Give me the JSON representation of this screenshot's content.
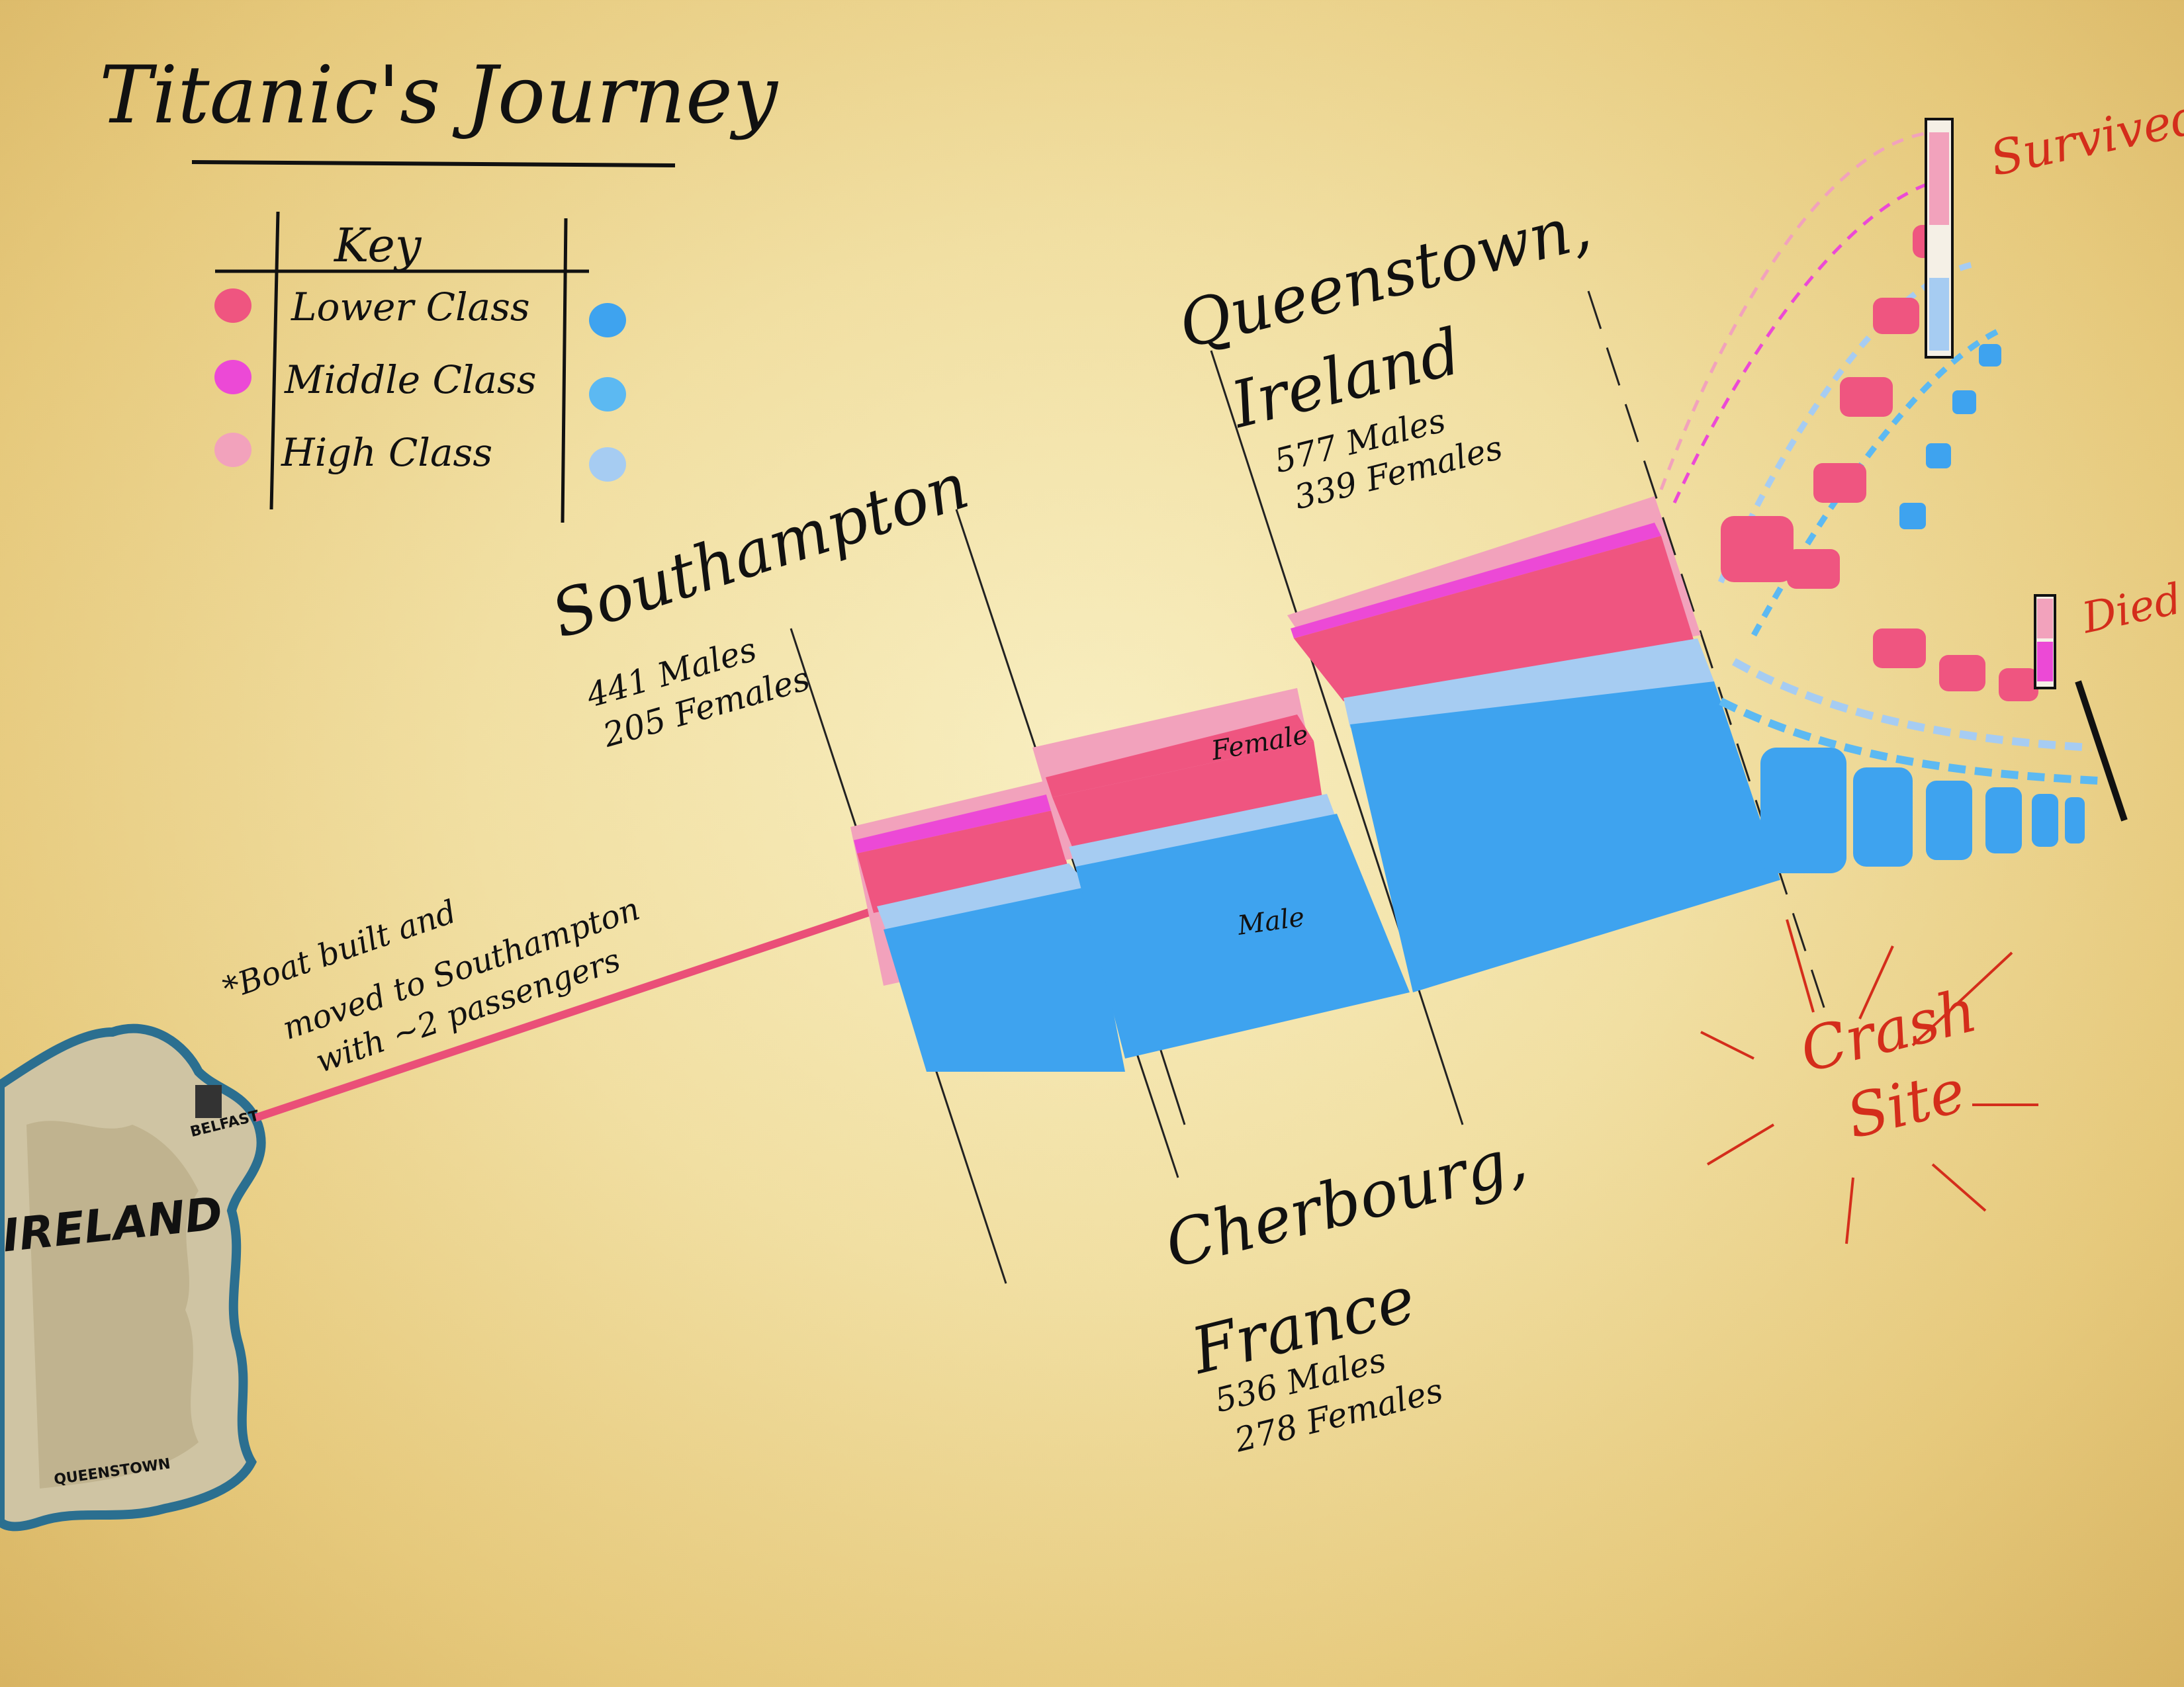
{
  "title": "Titanic's Journey",
  "key": {
    "heading": "Key",
    "items": [
      {
        "label": "Lower Class",
        "female_color": "#ef5580",
        "male_color": "#3ea3ef"
      },
      {
        "label": "Middle Class",
        "female_color": "#ec49d6",
        "male_color": "#5cb9f2"
      },
      {
        "label": "High Class",
        "female_color": "#f2a2bc",
        "male_color": "#a6ccf2"
      }
    ]
  },
  "ports": {
    "southampton": {
      "name": "Southampton",
      "males": "441 Males",
      "females": "205 Females"
    },
    "cherbourg": {
      "name_line1": "Cherbourg,",
      "name_line2": "France",
      "males": "536 Males",
      "females": "278 Females"
    },
    "queenstown": {
      "name_line1": "Queenstown,",
      "name_line2": "Ireland",
      "males": "577 Males",
      "females": "339 Females"
    }
  },
  "flow_labels": {
    "female": "Female",
    "male": "Male"
  },
  "note": {
    "line1": "*Boat built and",
    "line2": "moved to Southampton",
    "line3": "with ~2 passengers"
  },
  "outcomes": {
    "survived": "Survived",
    "died": "Died"
  },
  "crash_site": {
    "line1": "Crash",
    "line2": "Site"
  },
  "map": {
    "country": "IRELAND",
    "city_north": "BELFAST",
    "city_south": "QUEENSTOWN"
  },
  "colors": {
    "female_lower": "#ef5580",
    "female_middle": "#ec49d6",
    "female_high": "#f2a2bc",
    "male_lower": "#3ea3ef",
    "male_middle": "#5cb9f2",
    "male_high": "#a6ccf2",
    "route": "#ea4f78",
    "annotation_red": "#d42d1b"
  }
}
